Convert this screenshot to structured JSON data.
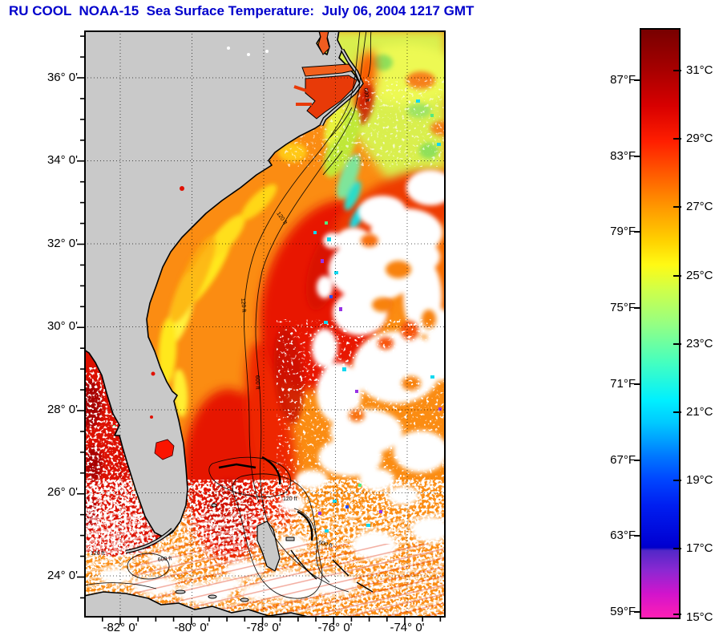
{
  "title": "RU COOL  NOAA-15  Sea Surface Temperature:  July 06, 2004 1217 GMT",
  "axes": {
    "lat": [
      "36° 0'",
      "34° 0'",
      "32° 0'",
      "30° 0'",
      "28° 0'",
      "26° 0'",
      "24° 0'"
    ],
    "lon": [
      "-82° 0'",
      "-80° 0'",
      "-78° 0'",
      "-76° 0'",
      "-74° 0'"
    ]
  },
  "colorbar": {
    "fahrenheit": [
      "87°F",
      "83°F",
      "79°F",
      "75°F",
      "71°F",
      "67°F",
      "63°F",
      "59°F"
    ],
    "celsius": [
      "31°C",
      "29°C",
      "27°C",
      "25°C",
      "23°C",
      "21°C",
      "19°C",
      "17°C",
      "15°C"
    ]
  },
  "contours": {
    "c600": "600 ft",
    "c120": "120 ft"
  },
  "colors": {
    "title_blue": "#0000cc",
    "land_gray": "#c9c9c9",
    "cloud_white": "#ffffff",
    "gulf_stream_red": "#e61400",
    "nearshore_yellow": "#ffe81e",
    "shelf_green": "#bfe838",
    "cold_cyan": "#12d8f0"
  },
  "chart_data": {
    "type": "heatmap",
    "title": "RU COOL NOAA-15 Sea Surface Temperature: July 06, 2004 1217 GMT",
    "satellite": "NOAA-15",
    "timestamp_label": "July 06, 2004 1217 GMT",
    "lon_range": [
      -83.05,
      -72.95
    ],
    "lat_range": [
      23.0,
      37.1
    ],
    "lat_ticks_deg": [
      36,
      34,
      32,
      30,
      28,
      26,
      24
    ],
    "lon_ticks_deg": [
      -82,
      -80,
      -78,
      -76,
      -74
    ],
    "grid": "dotted 2-degree graticule",
    "colorbar_range_c": [
      15,
      32.2
    ],
    "colorbar_ticks_c": [
      31,
      29,
      27,
      25,
      23,
      21,
      19,
      17,
      15
    ],
    "colorbar_ticks_f": [
      87,
      83,
      79,
      75,
      71,
      67,
      63,
      59
    ],
    "colorbar_stops": [
      {
        "c": 32.2,
        "hex": "#780000"
      },
      {
        "c": 31,
        "hex": "#a80000"
      },
      {
        "c": 29,
        "hex": "#ff1e00"
      },
      {
        "c": 27,
        "hex": "#ff9600"
      },
      {
        "c": 26,
        "hex": "#ffd200"
      },
      {
        "c": 25.3,
        "hex": "#fffa14"
      },
      {
        "c": 23.6,
        "hex": "#96ff82"
      },
      {
        "c": 21,
        "hex": "#00f0ff"
      },
      {
        "c": 19,
        "hex": "#0050ff"
      },
      {
        "c": 17.1,
        "hex": "#0000c8"
      },
      {
        "c": 17.0,
        "hex": "#5228c8"
      },
      {
        "c": 15,
        "hex": "#ff1eb4"
      }
    ],
    "depth_contours_ft": [
      120,
      600
    ],
    "legend_position": "right"
  }
}
